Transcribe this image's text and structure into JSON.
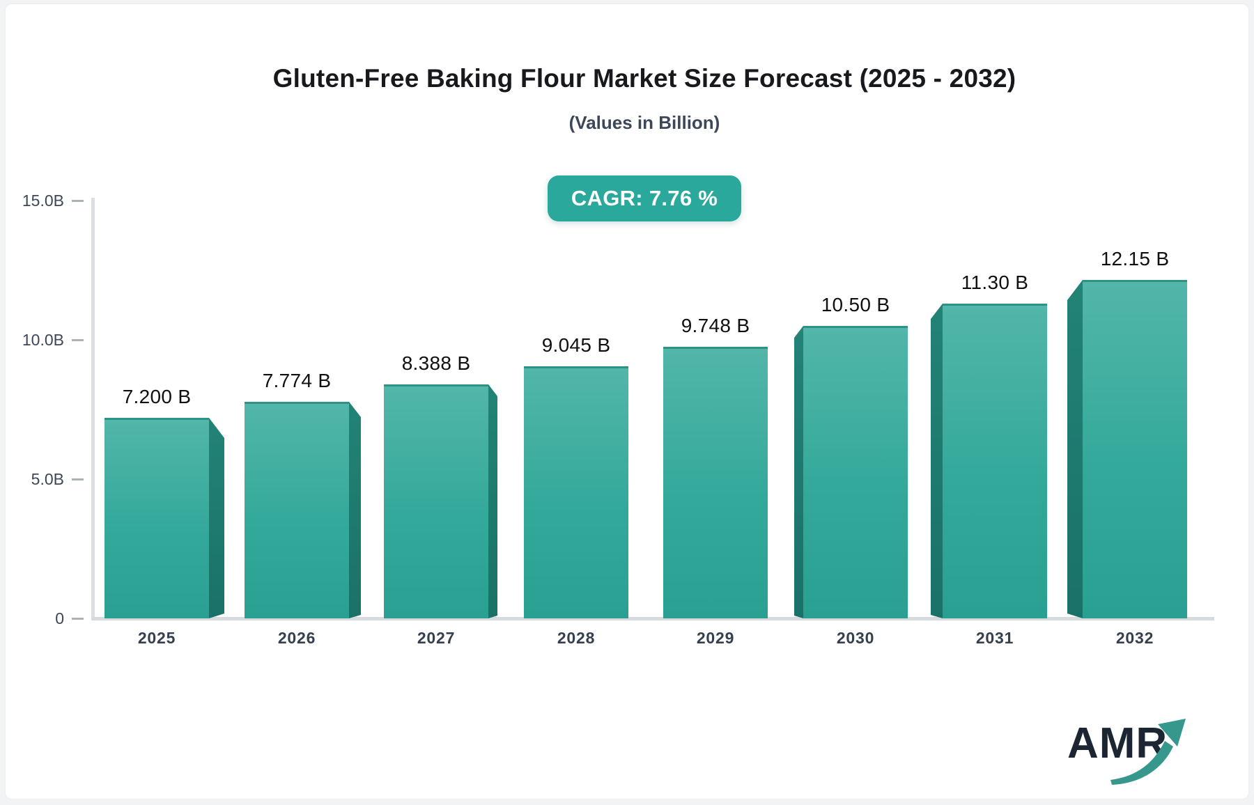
{
  "header": {
    "title": "Gluten-Free Baking Flour Market Size Forecast (2025 - 2032)",
    "subtitle": "(Values in Billion)",
    "cagr_badge": "CAGR: 7.76 %"
  },
  "chart_data": {
    "type": "bar",
    "title": "Gluten-Free Baking Flour Market Size Forecast (2025 - 2032)",
    "subtitle": "(Values in Billion)",
    "cagr": "7.76 %",
    "categories": [
      "2025",
      "2026",
      "2027",
      "2028",
      "2029",
      "2030",
      "2031",
      "2032"
    ],
    "values": [
      7.2,
      7.774,
      8.388,
      9.045,
      9.748,
      10.5,
      11.3,
      12.15
    ],
    "value_labels": [
      "7.200 B",
      "7.774 B",
      "8.388 B",
      "9.045 B",
      "9.748 B",
      "10.50 B",
      "11.30 B",
      "12.15 B"
    ],
    "y_ticks": [
      {
        "v": 0,
        "label": "0"
      },
      {
        "v": 5,
        "label": "5.0B"
      },
      {
        "v": 10,
        "label": "10.0B"
      },
      {
        "v": 15,
        "label": "15.0B"
      }
    ],
    "ylim": [
      0,
      15
    ],
    "xlabel": "",
    "ylabel": "",
    "grid": false,
    "legend_position": "none",
    "colors": {
      "bar_top": "#52b6a9",
      "bar_bottom": "#2aa093",
      "bar_side": "#1e7b6f",
      "bar_cap": "#2e9386",
      "axis": "#d7dadf",
      "tick_label": "#3d4757",
      "badge_bg": "#2aa89b",
      "badge_text": "#ffffff",
      "title_text": "#17191d",
      "subtitle_text": "#3c4759"
    }
  },
  "logo": {
    "text": "AMR",
    "arrow_color": "#36988c"
  }
}
